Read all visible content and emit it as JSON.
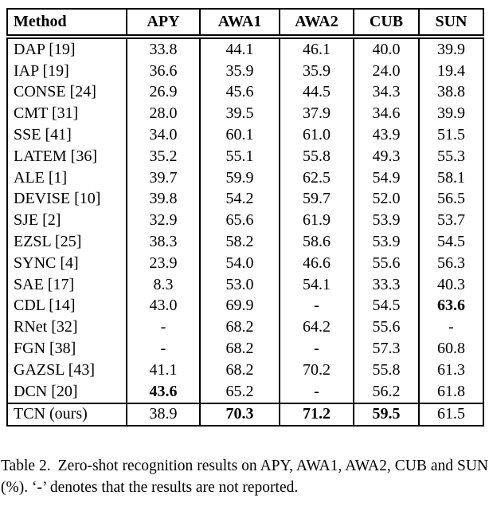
{
  "table": {
    "columns": [
      "Method",
      "APY",
      "AWA1",
      "AWA2",
      "CUB",
      "SUN"
    ],
    "rows": [
      {
        "method": "DAP [19]",
        "values": [
          "33.8",
          "44.1",
          "46.1",
          "40.0",
          "39.9"
        ],
        "bold": [
          0,
          0,
          0,
          0,
          0
        ]
      },
      {
        "method": "IAP [19]",
        "values": [
          "36.6",
          "35.9",
          "35.9",
          "24.0",
          "19.4"
        ],
        "bold": [
          0,
          0,
          0,
          0,
          0
        ]
      },
      {
        "method": "CONSE [24]",
        "values": [
          "26.9",
          "45.6",
          "44.5",
          "34.3",
          "38.8"
        ],
        "bold": [
          0,
          0,
          0,
          0,
          0
        ]
      },
      {
        "method": "CMT [31]",
        "values": [
          "28.0",
          "39.5",
          "37.9",
          "34.6",
          "39.9"
        ],
        "bold": [
          0,
          0,
          0,
          0,
          0
        ]
      },
      {
        "method": "SSE [41]",
        "values": [
          "34.0",
          "60.1",
          "61.0",
          "43.9",
          "51.5"
        ],
        "bold": [
          0,
          0,
          0,
          0,
          0
        ]
      },
      {
        "method": "LATEM [36]",
        "values": [
          "35.2",
          "55.1",
          "55.8",
          "49.3",
          "55.3"
        ],
        "bold": [
          0,
          0,
          0,
          0,
          0
        ]
      },
      {
        "method": "ALE [1]",
        "values": [
          "39.7",
          "59.9",
          "62.5",
          "54.9",
          "58.1"
        ],
        "bold": [
          0,
          0,
          0,
          0,
          0
        ]
      },
      {
        "method": "DEVISE [10]",
        "values": [
          "39.8",
          "54.2",
          "59.7",
          "52.0",
          "56.5"
        ],
        "bold": [
          0,
          0,
          0,
          0,
          0
        ]
      },
      {
        "method": "SJE [2]",
        "values": [
          "32.9",
          "65.6",
          "61.9",
          "53.9",
          "53.7"
        ],
        "bold": [
          0,
          0,
          0,
          0,
          0
        ]
      },
      {
        "method": "EZSL [25]",
        "values": [
          "38.3",
          "58.2",
          "58.6",
          "53.9",
          "54.5"
        ],
        "bold": [
          0,
          0,
          0,
          0,
          0
        ]
      },
      {
        "method": "SYNC [4]",
        "values": [
          "23.9",
          "54.0",
          "46.6",
          "55.6",
          "56.3"
        ],
        "bold": [
          0,
          0,
          0,
          0,
          0
        ]
      },
      {
        "method": "SAE [17]",
        "values": [
          "8.3",
          "53.0",
          "54.1",
          "33.3",
          "40.3"
        ],
        "bold": [
          0,
          0,
          0,
          0,
          0
        ]
      },
      {
        "method": "CDL [14]",
        "values": [
          "43.0",
          "69.9",
          "-",
          "54.5",
          "63.6"
        ],
        "bold": [
          0,
          0,
          0,
          0,
          1
        ]
      },
      {
        "method": "RNet [32]",
        "values": [
          "-",
          "68.2",
          "64.2",
          "55.6",
          "-"
        ],
        "bold": [
          0,
          0,
          0,
          0,
          0
        ]
      },
      {
        "method": "FGN [38]",
        "values": [
          "-",
          "68.2",
          "-",
          "57.3",
          "60.8"
        ],
        "bold": [
          0,
          0,
          0,
          0,
          0
        ]
      },
      {
        "method": "GAZSL [43]",
        "values": [
          "41.1",
          "68.2",
          "70.2",
          "55.8",
          "61.3"
        ],
        "bold": [
          0,
          0,
          0,
          0,
          0
        ]
      },
      {
        "method": "DCN [20]",
        "values": [
          "43.6",
          "65.2",
          "-",
          "56.2",
          "61.8"
        ],
        "bold": [
          1,
          0,
          0,
          0,
          0
        ]
      },
      {
        "method": "TCN (ours)",
        "values": [
          "38.9",
          "70.3",
          "71.2",
          "59.5",
          "61.5"
        ],
        "bold": [
          0,
          1,
          1,
          1,
          0
        ],
        "separator_above": true
      }
    ]
  },
  "caption": {
    "label": "Table 2.",
    "body": "Zero-shot recognition results on APY, AWA1, AWA2, CUB and SUN (%). ‘-’ denotes that the results are not reported."
  }
}
